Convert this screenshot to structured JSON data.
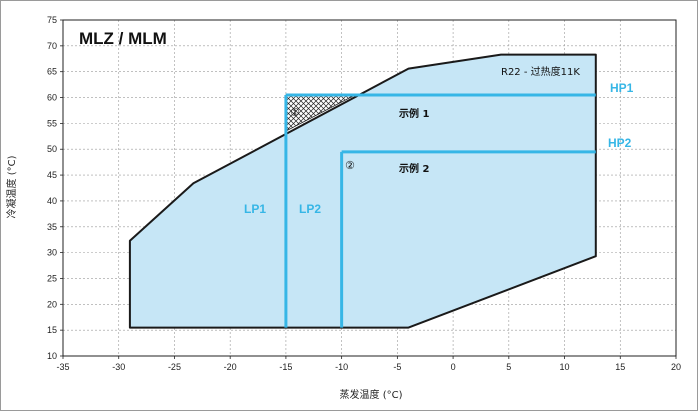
{
  "chart_data": {
    "type": "area",
    "title": "MLZ / MLM",
    "xlabel": "蒸发温度 (°C)",
    "ylabel": "冷凝温度 (°C)",
    "xlim": [
      -35,
      20
    ],
    "ylim": [
      10,
      75
    ],
    "x_ticks": [
      "-35",
      "-30",
      "-25",
      "-20",
      "-15",
      "-10",
      "-5",
      "0",
      "5",
      "10",
      "15",
      "20"
    ],
    "y_ticks": [
      "10",
      "15",
      "20",
      "25",
      "30",
      "35",
      "40",
      "45",
      "50",
      "55",
      "60",
      "65",
      "70",
      "75"
    ],
    "grid": true,
    "envelope": {
      "name": "R22 - 过热度11K",
      "points": [
        [
          -29,
          15.5
        ],
        [
          -4,
          15.5
        ],
        [
          12.8,
          29.3
        ],
        [
          12.8,
          68.3
        ],
        [
          4.3,
          68.3
        ],
        [
          -4,
          65.6
        ],
        [
          -23.3,
          43.4
        ],
        [
          -29,
          32.3
        ]
      ],
      "fill": "#c6e6f6",
      "stroke": "#1a1a1a"
    },
    "hatched_region": {
      "points": [
        [
          -15,
          53.5
        ],
        [
          -15,
          60.5
        ],
        [
          -8.8,
          60.5
        ]
      ]
    },
    "examples": [
      {
        "label": "示例 1",
        "marker": "①",
        "evap": -15,
        "cond": 60.5,
        "lp_label": "LP1",
        "hp_label": "HP1"
      },
      {
        "label": "示例 2",
        "marker": "②",
        "evap": -10,
        "cond": 49.5,
        "lp_label": "LP2",
        "hp_label": "HP2"
      }
    ],
    "line_color": "#36b6e6"
  }
}
